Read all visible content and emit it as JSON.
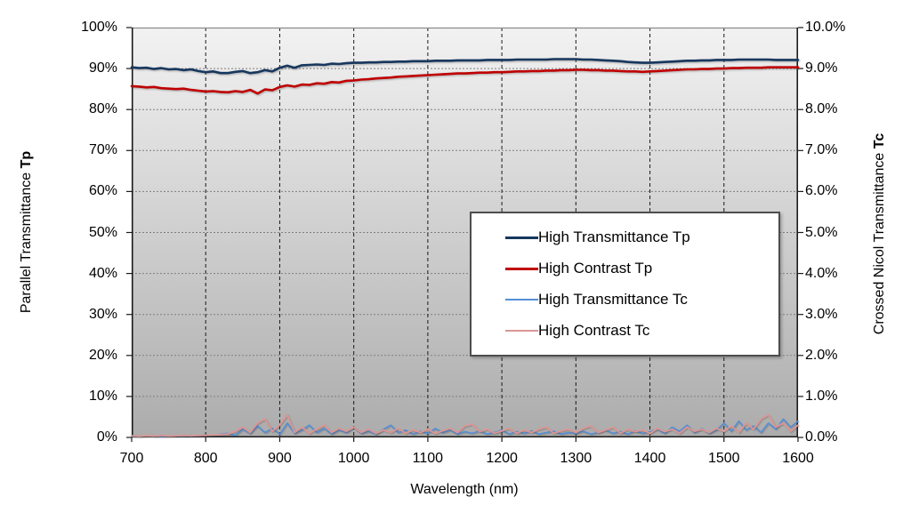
{
  "chart_data": {
    "type": "line",
    "title": "",
    "grid": true,
    "legend_position": "middle-right",
    "plot_bg_gradient": [
      "#F2F2F2",
      "#ACACAC"
    ],
    "x": {
      "label": "Wavelength (nm)",
      "min": 700,
      "max": 1600,
      "ticks": [
        700,
        800,
        900,
        1000,
        1100,
        1200,
        1300,
        1400,
        1500,
        1600
      ]
    },
    "y_left": {
      "label_main": "Parallel Transmittance",
      "label_bold": "Tp",
      "min": 0,
      "max": 100,
      "tick_values": [
        0,
        10,
        20,
        30,
        40,
        50,
        60,
        70,
        80,
        90,
        100
      ],
      "tick_labels": [
        "0%",
        "10%",
        "20%",
        "30%",
        "40%",
        "50%",
        "60%",
        "70%",
        "80%",
        "90%",
        "100%"
      ]
    },
    "y_right": {
      "label_main": "Crossed Nicol Transmittance",
      "label_bold": "Tc",
      "min": 0,
      "max": 10,
      "tick_values": [
        0,
        1,
        2,
        3,
        4,
        5,
        6,
        7,
        8,
        9,
        10
      ],
      "tick_labels": [
        "0.0%",
        "1.0%",
        "2.0%",
        "3.0%",
        "4.0%",
        "5.0%",
        "6.0%",
        "7.0%",
        "8.0%",
        "9.0%",
        "10.0%"
      ]
    },
    "x_start": 700,
    "x_step": 10,
    "series": [
      {
        "name": "High Transmittance Tp",
        "axis": "left",
        "color": "#17375E",
        "stroke_width": 2.6,
        "values": [
          90.3,
          90.1,
          90.2,
          89.9,
          90.1,
          89.8,
          89.9,
          89.6,
          89.8,
          89.4,
          89.1,
          89.3,
          88.9,
          88.9,
          89.2,
          89.4,
          88.9,
          89.1,
          89.6,
          89.3,
          90.2,
          90.7,
          90.2,
          90.8,
          90.9,
          91.0,
          90.9,
          91.2,
          91.1,
          91.3,
          91.4,
          91.4,
          91.5,
          91.5,
          91.6,
          91.6,
          91.7,
          91.7,
          91.8,
          91.8,
          91.8,
          91.9,
          91.9,
          91.9,
          92.0,
          92.0,
          92.0,
          92.0,
          92.1,
          92.1,
          92.1,
          92.1,
          92.2,
          92.2,
          92.2,
          92.2,
          92.2,
          92.3,
          92.3,
          92.3,
          92.3,
          92.2,
          92.2,
          92.1,
          92.0,
          91.9,
          91.8,
          91.6,
          91.5,
          91.4,
          91.4,
          91.5,
          91.6,
          91.7,
          91.8,
          91.9,
          91.9,
          92.0,
          92.0,
          92.1,
          92.1,
          92.1,
          92.2,
          92.2,
          92.2,
          92.2,
          92.2,
          92.1,
          92.1,
          92.1,
          92.1
        ]
      },
      {
        "name": "High Contrast Tp",
        "axis": "left",
        "color": "#C00000",
        "stroke_width": 2.6,
        "values": [
          85.7,
          85.6,
          85.4,
          85.5,
          85.2,
          85.1,
          85.0,
          85.1,
          84.8,
          84.6,
          84.4,
          84.5,
          84.3,
          84.2,
          84.5,
          84.3,
          84.8,
          83.9,
          84.9,
          84.7,
          85.5,
          85.9,
          85.6,
          86.1,
          86.0,
          86.4,
          86.3,
          86.7,
          86.6,
          87.0,
          87.1,
          87.3,
          87.4,
          87.6,
          87.7,
          87.8,
          88.0,
          88.1,
          88.2,
          88.3,
          88.4,
          88.5,
          88.6,
          88.7,
          88.8,
          88.8,
          88.9,
          89.0,
          89.0,
          89.1,
          89.1,
          89.2,
          89.3,
          89.3,
          89.4,
          89.4,
          89.5,
          89.5,
          89.6,
          89.6,
          89.7,
          89.7,
          89.6,
          89.6,
          89.5,
          89.5,
          89.4,
          89.3,
          89.3,
          89.2,
          89.3,
          89.4,
          89.5,
          89.6,
          89.7,
          89.8,
          89.8,
          89.9,
          89.9,
          90.0,
          90.0,
          90.1,
          90.1,
          90.2,
          90.2,
          90.2,
          90.3,
          90.3,
          90.3,
          90.3,
          90.3
        ]
      },
      {
        "name": "High Transmittance Tc",
        "axis": "right",
        "color": "#558ED5",
        "stroke_width": 1.6,
        "values": [
          0.03,
          0.02,
          0.04,
          0.03,
          0.02,
          0.03,
          0.04,
          0.03,
          0.05,
          0.04,
          0.06,
          0.05,
          0.08,
          0.1,
          0.05,
          0.2,
          0.1,
          0.28,
          0.12,
          0.22,
          0.08,
          0.35,
          0.1,
          0.18,
          0.3,
          0.12,
          0.22,
          0.08,
          0.18,
          0.12,
          0.25,
          0.1,
          0.15,
          0.08,
          0.2,
          0.3,
          0.12,
          0.18,
          0.08,
          0.15,
          0.1,
          0.22,
          0.12,
          0.18,
          0.08,
          0.14,
          0.1,
          0.16,
          0.08,
          0.12,
          0.18,
          0.08,
          0.14,
          0.1,
          0.16,
          0.08,
          0.12,
          0.15,
          0.08,
          0.12,
          0.1,
          0.15,
          0.08,
          0.12,
          0.18,
          0.1,
          0.14,
          0.08,
          0.16,
          0.1,
          0.14,
          0.2,
          0.1,
          0.25,
          0.15,
          0.3,
          0.12,
          0.22,
          0.1,
          0.18,
          0.35,
          0.15,
          0.4,
          0.18,
          0.28,
          0.12,
          0.35,
          0.2,
          0.45,
          0.25,
          0.4
        ]
      },
      {
        "name": "High Contrast Tc",
        "axis": "right",
        "color": "#DA9694",
        "stroke_width": 1.9,
        "values": [
          0.04,
          0.03,
          0.04,
          0.03,
          0.05,
          0.03,
          0.04,
          0.05,
          0.04,
          0.05,
          0.05,
          0.06,
          0.07,
          0.08,
          0.15,
          0.25,
          0.12,
          0.35,
          0.45,
          0.15,
          0.3,
          0.55,
          0.12,
          0.25,
          0.1,
          0.2,
          0.3,
          0.12,
          0.22,
          0.15,
          0.25,
          0.12,
          0.2,
          0.1,
          0.18,
          0.12,
          0.22,
          0.1,
          0.18,
          0.12,
          0.2,
          0.1,
          0.16,
          0.22,
          0.12,
          0.28,
          0.32,
          0.14,
          0.2,
          0.1,
          0.16,
          0.22,
          0.1,
          0.18,
          0.12,
          0.2,
          0.25,
          0.1,
          0.16,
          0.2,
          0.12,
          0.22,
          0.28,
          0.12,
          0.18,
          0.25,
          0.1,
          0.2,
          0.14,
          0.18,
          0.1,
          0.22,
          0.14,
          0.2,
          0.1,
          0.25,
          0.15,
          0.2,
          0.12,
          0.22,
          0.15,
          0.28,
          0.12,
          0.35,
          0.2,
          0.45,
          0.55,
          0.25,
          0.35,
          0.15,
          0.3
        ]
      }
    ]
  }
}
